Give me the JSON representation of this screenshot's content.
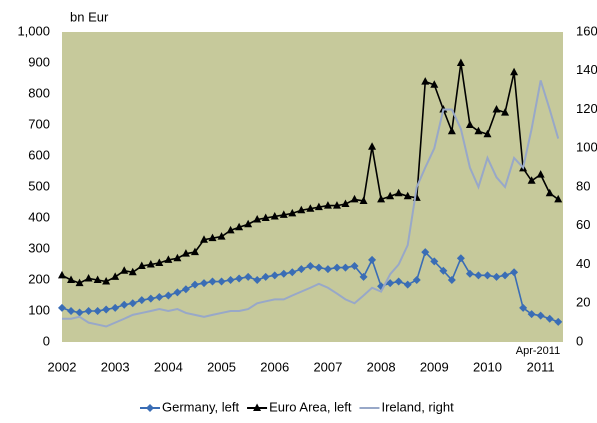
{
  "chart_data": {
    "type": "line",
    "y_unit_label": "bn Eur",
    "annotation": "Apr-2011",
    "background": "#c6c99b",
    "xlim": [
      2002,
      2011.42
    ],
    "xticks": [
      2002,
      2003,
      2004,
      2005,
      2006,
      2007,
      2008,
      2009,
      2010,
      2011
    ],
    "ylim": [
      0,
      1000
    ],
    "yticks": [
      0,
      100,
      200,
      300,
      400,
      500,
      600,
      700,
      800,
      900,
      {
        "value": 1000,
        "label": "1,000"
      }
    ],
    "y2lim": [
      0,
      160
    ],
    "y2ticks": [
      0,
      20,
      40,
      60,
      80,
      100,
      120,
      140,
      160
    ],
    "legend": "bottom",
    "x": [
      2002,
      2002.17,
      2002.33,
      2002.5,
      2002.67,
      2002.83,
      2003,
      2003.17,
      2003.33,
      2003.5,
      2003.67,
      2003.83,
      2004,
      2004.17,
      2004.33,
      2004.5,
      2004.67,
      2004.83,
      2005,
      2005.17,
      2005.33,
      2005.5,
      2005.67,
      2005.83,
      2006,
      2006.17,
      2006.33,
      2006.5,
      2006.67,
      2006.83,
      2007,
      2007.17,
      2007.33,
      2007.5,
      2007.67,
      2007.83,
      2008,
      2008.17,
      2008.33,
      2008.5,
      2008.67,
      2008.83,
      2009,
      2009.17,
      2009.33,
      2009.5,
      2009.67,
      2009.83,
      2010,
      2010.17,
      2010.33,
      2010.5,
      2010.67,
      2010.83,
      2011,
      2011.17,
      2011.33
    ],
    "series": [
      {
        "name": "Germany, left",
        "color": "#3a6db5",
        "marker": "diamond",
        "values": [
          110,
          100,
          95,
          100,
          100,
          105,
          110,
          120,
          125,
          135,
          140,
          145,
          150,
          160,
          170,
          185,
          190,
          195,
          195,
          200,
          205,
          210,
          200,
          210,
          215,
          220,
          225,
          235,
          245,
          240,
          235,
          240,
          240,
          245,
          210,
          265,
          180,
          190,
          195,
          185,
          200,
          290,
          260,
          230,
          200,
          270,
          220,
          215,
          215,
          210,
          215,
          225,
          110,
          90,
          85,
          75,
          65
        ]
      },
      {
        "name": "Euro Area, left",
        "color": "#000000",
        "marker": "triangle",
        "values": [
          215,
          200,
          190,
          205,
          200,
          195,
          210,
          230,
          225,
          245,
          250,
          255,
          265,
          270,
          285,
          290,
          330,
          335,
          340,
          360,
          370,
          380,
          395,
          400,
          405,
          410,
          415,
          425,
          430,
          435,
          440,
          440,
          445,
          460,
          455,
          630,
          460,
          470,
          480,
          470,
          465,
          840,
          830,
          750,
          680,
          900,
          700,
          680,
          670,
          750,
          740,
          870,
          560,
          520,
          540,
          480,
          460
        ]
      },
      {
        "name": "Ireland, right",
        "color": "#98a8c8",
        "marker": "none",
        "axis": "y2",
        "values": [
          12,
          12,
          13,
          10,
          9,
          8,
          10,
          12,
          14,
          15,
          16,
          17,
          16,
          17,
          15,
          14,
          13,
          14,
          15,
          16,
          16,
          17,
          20,
          21,
          22,
          22,
          24,
          26,
          28,
          30,
          28,
          25,
          22,
          20,
          24,
          28,
          26,
          35,
          40,
          50,
          80,
          90,
          100,
          120,
          120,
          110,
          90,
          80,
          95,
          85,
          80,
          95,
          90,
          110,
          135,
          120,
          105
        ]
      }
    ]
  }
}
